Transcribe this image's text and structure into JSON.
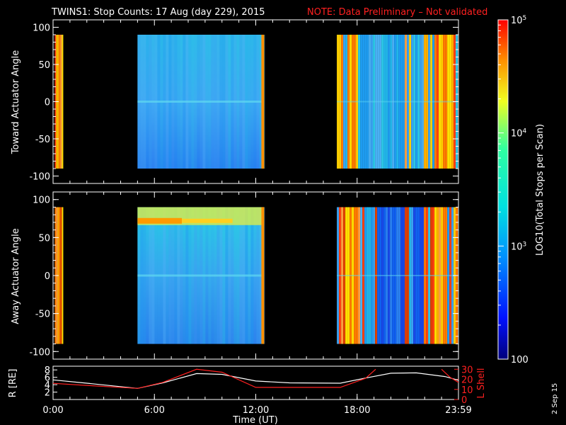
{
  "header": {
    "title": "TWINS1: Stop Counts: 17 Aug (day 229), 2015",
    "note": "NOTE: Data Preliminary – Not validated"
  },
  "stamp": "2 Sep 15",
  "colors": {
    "note": "#ff2020",
    "white_line": "#ffffff",
    "red_line": "#ff2020"
  },
  "chart_data": [
    {
      "type": "heatmap",
      "panel": "top",
      "ylabel": "Toward Actuator Angle",
      "ylim": [
        -110,
        110
      ],
      "y_ticks": [
        "100",
        "50",
        "0",
        "-50",
        "-100"
      ],
      "xlim": [
        0,
        24
      ],
      "data_intervals_hours": [
        [
          0.1,
          0.6
        ],
        [
          5.0,
          12.5
        ],
        [
          16.8,
          23.9
        ]
      ],
      "dominant_level": "10^3"
    },
    {
      "type": "heatmap",
      "panel": "middle",
      "ylabel": "Away Actuator Angle",
      "ylim": [
        -110,
        110
      ],
      "y_ticks": [
        "100",
        "50",
        "0",
        "-50",
        "-100"
      ],
      "xlim": [
        0,
        24
      ],
      "data_intervals_hours": [
        [
          0.1,
          0.6
        ],
        [
          5.0,
          12.5
        ],
        [
          16.8,
          23.9
        ]
      ],
      "hot_band_angle": 72
    },
    {
      "type": "line",
      "panel": "bottom",
      "ylabel_left": "R [RE]",
      "ylabel_right": "L Shell",
      "y_ticks_left": [
        "8",
        "6",
        "4",
        "2"
      ],
      "y_ticks_right": [
        "30",
        "20",
        "10",
        "0"
      ],
      "xlabel": "Time (UT)",
      "x_ticks": [
        "0:00",
        "6:00",
        "12:00",
        "18:00",
        "23:59"
      ],
      "xlim": [
        0,
        24
      ],
      "series": [
        {
          "color": "white",
          "axis": "R",
          "x": [
            0,
            2,
            5,
            6.5,
            8.5,
            10,
            12,
            14,
            17,
            18.5,
            20,
            21.5,
            23.2,
            24
          ],
          "y": [
            5.3,
            4.4,
            3.0,
            4.5,
            7.0,
            6.8,
            5.0,
            4.5,
            4.4,
            5.8,
            7.1,
            7.2,
            6.2,
            5.2
          ]
        },
        {
          "color": "red",
          "axis": "L",
          "x": [
            0,
            2,
            5,
            6.5,
            8.5,
            10,
            12,
            14,
            17,
            18.5,
            19.1
          ],
          "y": [
            16,
            14,
            11,
            17,
            30,
            27,
            12,
            12,
            12,
            21,
            30
          ],
          "x2": [
            23.0,
            23.5,
            24
          ],
          "y2": [
            30,
            22,
            17
          ]
        }
      ]
    },
    {
      "type": "colorbar",
      "label": "LOG10(Total Stops per Scan)",
      "tick_labels": [
        "100",
        "10^3",
        "10^4",
        "10^5"
      ],
      "tick_values": [
        100,
        1000,
        10000,
        100000
      ],
      "scale": "log"
    }
  ]
}
